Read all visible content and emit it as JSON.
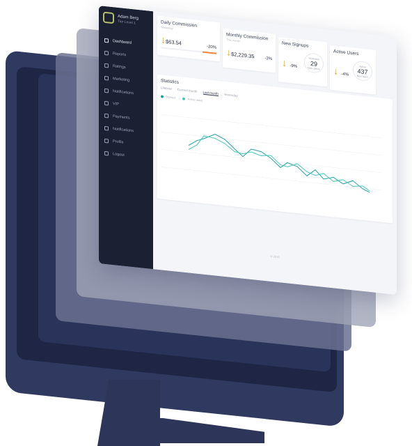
{
  "user": {
    "name": "Adam Berg",
    "role": "Tier Level 1"
  },
  "nav": [
    {
      "label": "Dashboard",
      "icon": "dashboard-icon",
      "active": true
    },
    {
      "label": "Reports",
      "icon": "reports-icon"
    },
    {
      "label": "Ratings",
      "icon": "ratings-icon"
    },
    {
      "label": "Marketing",
      "icon": "marketing-icon"
    },
    {
      "label": "Notifications",
      "icon": "notifications-icon"
    },
    {
      "label": "VIP",
      "icon": "vip-icon"
    },
    {
      "label": "Payments",
      "icon": "payments-icon"
    },
    {
      "label": "Notifications",
      "icon": "bell-icon"
    },
    {
      "label": "Profile",
      "icon": "profile-icon"
    },
    {
      "label": "Logout",
      "icon": "logout-icon"
    }
  ],
  "cards": {
    "daily": {
      "title": "Daily Commission",
      "sub": "Yesterday",
      "value": "$63.54",
      "pct": "-20%",
      "progress": 0.25
    },
    "monthly": {
      "title": "Monthly Commission",
      "sub": "This month",
      "value": "$2,229.35",
      "pct": "-3%"
    },
    "signups": {
      "title": "New Signups",
      "sub": "Yesterday",
      "pct": "-9%",
      "gauge_label": "Yesterday",
      "gauge_value": "29",
      "gauge_sub": "New clients"
    },
    "active": {
      "title": "Active Users",
      "sub": "This month",
      "pct": "-4%",
      "gauge_label": "Active",
      "gauge_value": "437",
      "gauge_sub": "New users"
    }
  },
  "stats": {
    "title": "Statistics",
    "tabs": [
      "Lifetime",
      "Current month",
      "Last month",
      "Yesterday"
    ],
    "active_tab": "Last month",
    "legend": [
      "Signups",
      "Active users"
    ],
    "colors": {
      "series1": "#1fa0a6",
      "series2": "#46c7bb"
    }
  },
  "footer": "© 2019"
}
